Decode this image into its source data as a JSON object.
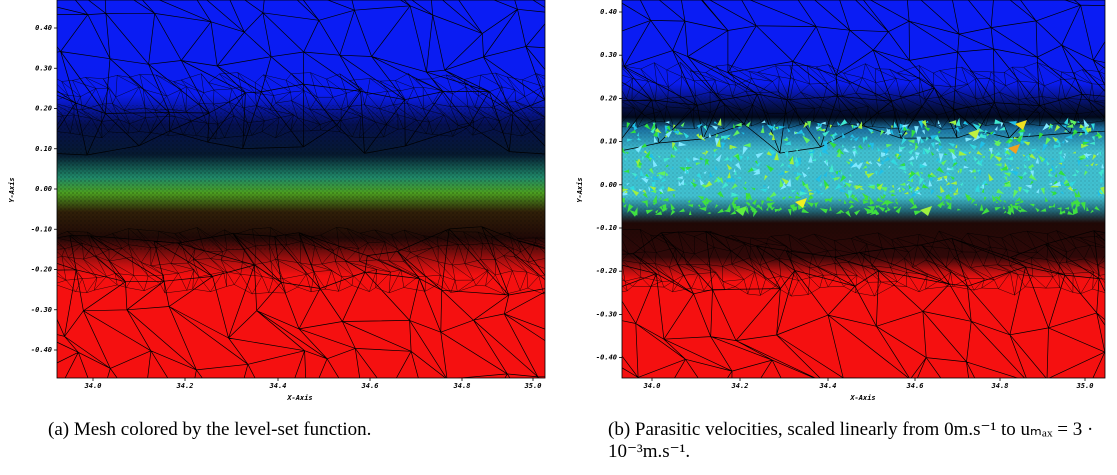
{
  "panels": [
    {
      "y_axis_label": "Y-Axis",
      "x_axis_label": "X-Axis",
      "yticks": [
        "0.40",
        "0.30",
        "0.20",
        "0.10",
        "0.00",
        "-0.10",
        "-0.20",
        "-0.30",
        "-0.40"
      ],
      "xticks": [
        "34.0",
        "34.2",
        "34.4",
        "34.6",
        "34.8",
        "35.0"
      ],
      "caption": "(a) Mesh colored by the level-set function."
    },
    {
      "y_axis_label": "Y-Axis",
      "x_axis_label": "X-Axis",
      "yticks": [
        "0.40",
        "0.30",
        "0.20",
        "0.10",
        "0.00",
        "-0.10",
        "-0.20",
        "-0.30",
        "-0.40"
      ],
      "xticks": [
        "34.0",
        "34.2",
        "34.4",
        "34.6",
        "34.8",
        "35.0"
      ],
      "caption": "(b) Parasitic velocities, scaled linearly from 0m.s⁻¹ to uₘₐₓ = 3 · 10⁻³m.s⁻¹."
    }
  ]
}
